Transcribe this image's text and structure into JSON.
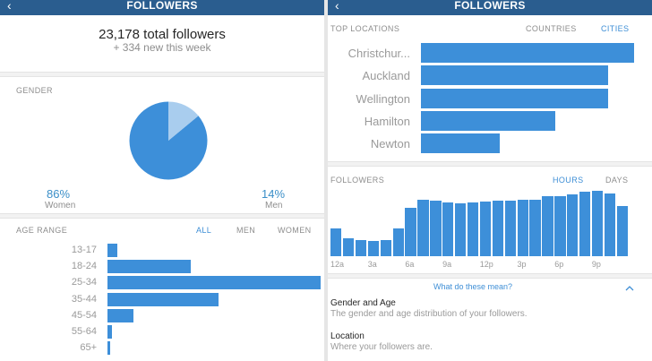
{
  "left": {
    "header": {
      "title": "FOLLOWERS",
      "back": "‹"
    },
    "total_followers": "23,178 total followers",
    "new_this_week": "+ 334 new this week",
    "gender": {
      "label": "GENDER",
      "women_pct": "86%",
      "women_label": "Women",
      "men_pct": "14%",
      "men_label": "Men"
    },
    "age_range": {
      "label": "AGE RANGE",
      "filters": [
        "ALL",
        "MEN",
        "WOMEN"
      ],
      "active_filter": "ALL"
    }
  },
  "right": {
    "header": {
      "title": "FOLLOWERS",
      "back": "‹"
    },
    "top_locations": {
      "label": "TOP LOCATIONS",
      "tabs": [
        "COUNTRIES",
        "CITIES"
      ],
      "active_tab": "CITIES"
    },
    "followers_time": {
      "label": "FOLLOWERS",
      "tabs": [
        "HOURS",
        "DAYS"
      ],
      "active_tab": "HOURS"
    },
    "what_link": "What do these mean?",
    "info": [
      {
        "title": "Gender and Age",
        "desc": "The gender and age distribution of your followers."
      },
      {
        "title": "Location",
        "desc": "Where your followers are."
      }
    ]
  },
  "colors": {
    "accent": "#3d8fd9",
    "accent_light": "#a9cdee",
    "header_bg": "#2a5d8f"
  },
  "chart_data": [
    {
      "type": "pie",
      "categories": [
        "Women",
        "Men"
      ],
      "values": [
        86,
        14
      ]
    },
    {
      "type": "bar",
      "orientation": "horizontal",
      "categories": [
        "13-17",
        "18-24",
        "25-34",
        "35-44",
        "45-54",
        "55-64",
        "65+"
      ],
      "values": [
        4.5,
        39,
        100,
        52,
        12,
        2,
        1
      ],
      "xlim": [
        0,
        100
      ]
    },
    {
      "type": "bar",
      "orientation": "horizontal",
      "categories": [
        "Christchur...",
        "Auckland",
        "Wellington",
        "Hamilton",
        "Newton"
      ],
      "values": [
        100,
        88,
        88,
        63,
        37
      ],
      "xlim": [
        0,
        100
      ]
    },
    {
      "type": "bar",
      "categories": [
        "12a",
        "1a",
        "2a",
        "3a",
        "4a",
        "5a",
        "6a",
        "7a",
        "8a",
        "9a",
        "10a",
        "11a",
        "12p",
        "1p",
        "2p",
        "3p",
        "4p",
        "5p",
        "6p",
        "7p",
        "8p",
        "9p",
        "10p",
        "11p"
      ],
      "tick_labels": [
        "12a",
        "3a",
        "6a",
        "9a",
        "12p",
        "3p",
        "6p",
        "9p"
      ],
      "values": [
        46,
        30,
        27,
        25,
        26,
        45,
        79,
        92,
        91,
        88,
        86,
        88,
        90,
        91,
        91,
        92,
        93,
        98,
        98,
        101,
        106,
        107,
        103,
        82
      ],
      "ylim": [
        0,
        110
      ]
    }
  ]
}
